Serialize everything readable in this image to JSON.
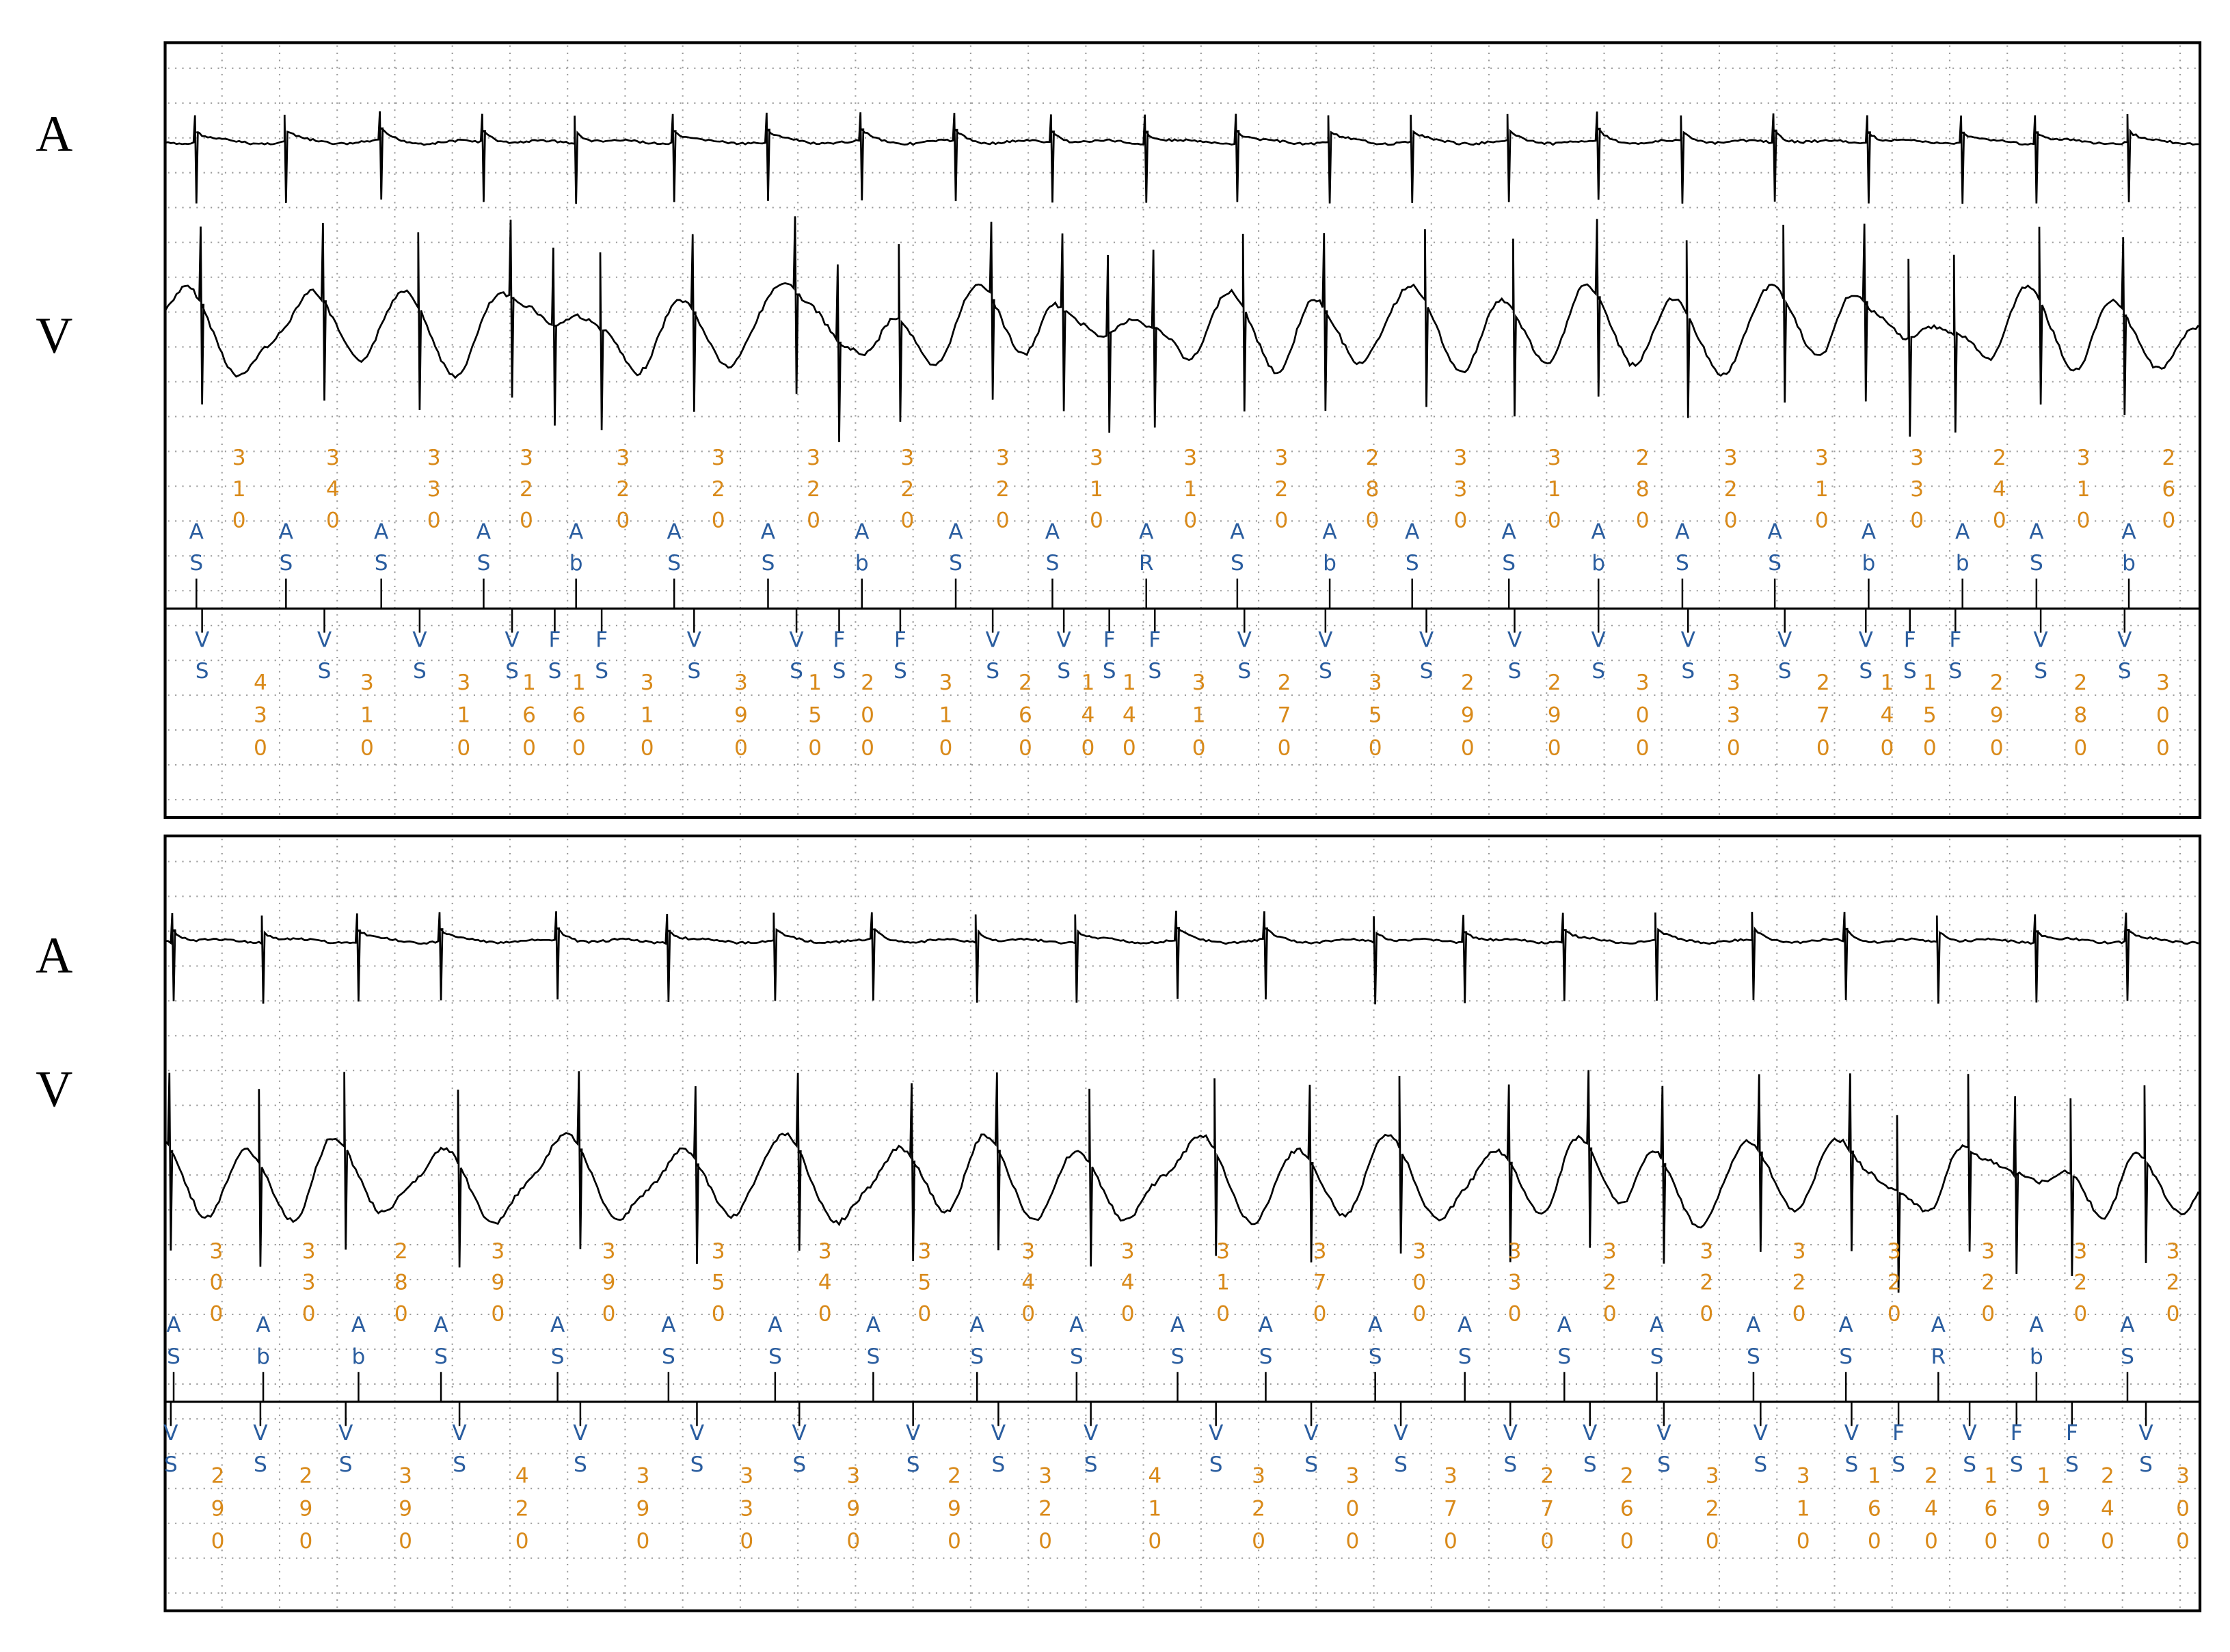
{
  "panels": [
    {
      "row_labels": [
        "A",
        "V"
      ],
      "atrial": {
        "markers": [
          "AS",
          "AS",
          "AS",
          "AS",
          "Ab",
          "AS",
          "AS",
          "Ab",
          "AS",
          "AS",
          "AR",
          "AS",
          "Ab",
          "AS",
          "AS",
          "Ab",
          "AS",
          "AS",
          "Ab",
          "Ab",
          "AS",
          "Ab"
        ],
        "intervals": [
          310,
          340,
          330,
          320,
          320,
          320,
          320,
          320,
          320,
          310,
          310,
          320,
          280,
          330,
          310,
          280,
          320,
          310,
          330,
          240,
          310,
          260
        ]
      },
      "ventricular": {
        "markers": [
          "VS",
          "VS",
          "VS",
          "VS",
          "FS",
          "FS",
          "VS",
          "VS",
          "FS",
          "FS",
          "VS",
          "VS",
          "FS",
          "FS",
          "VS",
          "VS",
          "VS",
          "VS",
          "VS",
          "VS",
          "VS",
          "VS",
          "FS",
          "FS",
          "VS",
          "VS"
        ],
        "intervals": [
          430,
          310,
          310,
          160,
          160,
          310,
          390,
          150,
          200,
          310,
          260,
          140,
          140,
          310,
          270,
          350,
          290,
          290,
          300,
          330,
          270,
          140,
          150,
          290,
          280,
          300
        ]
      }
    },
    {
      "row_labels": [
        "A",
        "V"
      ],
      "atrial": {
        "markers": [
          "AS",
          "Ab",
          "Ab",
          "AS",
          "AS",
          "AS",
          "AS",
          "AS",
          "AS",
          "AS",
          "AS",
          "AS",
          "AS",
          "AS",
          "AS",
          "AS",
          "AS",
          "AS",
          "AR",
          "Ab",
          "AS"
        ],
        "intervals": [
          300,
          330,
          280,
          390,
          390,
          350,
          340,
          350,
          340,
          340,
          310,
          370,
          300,
          330,
          320,
          320,
          320,
          320,
          320,
          320,
          320
        ]
      },
      "ventricular": {
        "markers": [
          "VS",
          "VS",
          "VS",
          "VS",
          "VS",
          "VS",
          "VS",
          "VS",
          "VS",
          "VS",
          "VS",
          "VS",
          "VS",
          "VS",
          "VS",
          "VS",
          "VS",
          "VS",
          "FS",
          "VS",
          "FS",
          "FS",
          "VS"
        ],
        "intervals": [
          290,
          290,
          390,
          420,
          390,
          330,
          390,
          290,
          320,
          410,
          320,
          300,
          370,
          270,
          260,
          320,
          310,
          160,
          240,
          160,
          190,
          240,
          300
        ]
      }
    }
  ]
}
